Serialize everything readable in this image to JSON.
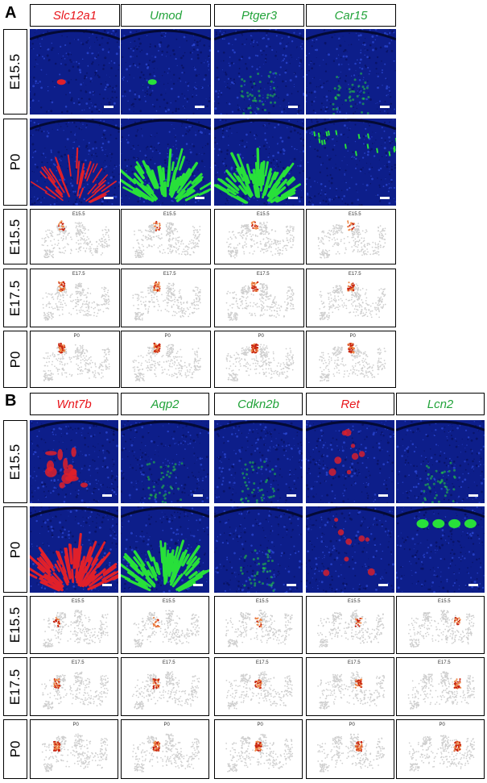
{
  "panel_a": {
    "letter": "A",
    "genes": [
      {
        "name": "Slc12a1",
        "color": "#e8151b"
      },
      {
        "name": "Umod",
        "color": "#22a33a"
      },
      {
        "name": "Ptger3",
        "color": "#22a33a"
      },
      {
        "name": "Car15",
        "color": "#22a33a"
      }
    ],
    "image_stages": [
      "E15.5",
      "P0"
    ],
    "umap_stages": [
      "E15.5",
      "E17.5",
      "P0"
    ]
  },
  "panel_b": {
    "letter": "B",
    "genes": [
      {
        "name": "Wnt7b",
        "color": "#e8151b"
      },
      {
        "name": "Aqp2",
        "color": "#22a33a"
      },
      {
        "name": "Cdkn2b",
        "color": "#22a33a"
      },
      {
        "name": "Ret",
        "color": "#e8151b"
      },
      {
        "name": "Lcn2",
        "color": "#22a33a"
      }
    ],
    "image_stages": [
      "E15.5",
      "P0"
    ],
    "umap_stages": [
      "E15.5",
      "E17.5",
      "P0"
    ]
  },
  "umap_labels": [
    "E15.5",
    "E17.5",
    "P0"
  ],
  "colors": {
    "dapi_blue": "#0d1e8a",
    "signal_red": "#e0202a",
    "signal_green": "#28e03a",
    "umap_grey": "#cfcfcf",
    "umap_hot": "#c8230f"
  }
}
